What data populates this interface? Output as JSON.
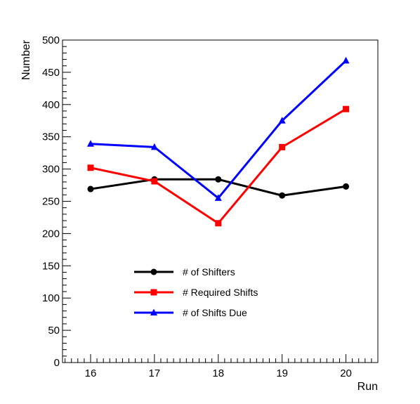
{
  "chart_data": {
    "type": "line",
    "xlabel": "Run",
    "ylabel": "Number",
    "x": [
      16,
      17,
      18,
      19,
      20
    ],
    "xlim": [
      15.56,
      20.5
    ],
    "ylim": [
      0,
      500
    ],
    "x_ticks": [
      "16",
      "17",
      "18",
      "19",
      "20"
    ],
    "y_ticks": [
      "0",
      "50",
      "100",
      "150",
      "200",
      "250",
      "300",
      "350",
      "400",
      "450",
      "500"
    ],
    "grid": false,
    "legend_position": "lower-left",
    "series": [
      {
        "name": "# of Shifters",
        "values": [
          269,
          284,
          284,
          259,
          273
        ],
        "color": "#000000",
        "marker": "circle"
      },
      {
        "name": "# Required Shifts",
        "values": [
          302,
          281,
          216,
          334,
          393
        ],
        "color": "#ff0000",
        "marker": "square"
      },
      {
        "name": "# of Shifts Due",
        "values": [
          339,
          334,
          255,
          375,
          468
        ],
        "color": "#0000ff",
        "marker": "triangle"
      }
    ]
  }
}
